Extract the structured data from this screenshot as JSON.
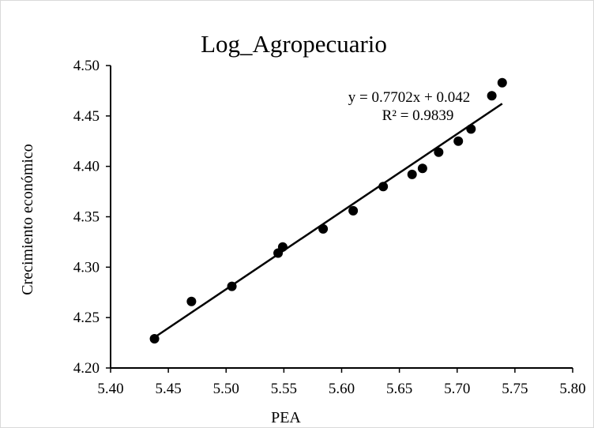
{
  "chart_data": {
    "type": "scatter",
    "title": "Log_Agropecuario",
    "xlabel": "PEA",
    "ylabel": "Crecimiento económico",
    "xlim": [
      5.4,
      5.8
    ],
    "ylim": [
      4.2,
      4.5
    ],
    "x_ticks": [
      "5.40",
      "5.45",
      "5.50",
      "5.55",
      "5.60",
      "5.65",
      "5.70",
      "5.75",
      "5.80"
    ],
    "y_ticks": [
      "4.20",
      "4.25",
      "4.30",
      "4.35",
      "4.40",
      "4.45",
      "4.50"
    ],
    "grid": false,
    "legend": "none",
    "point_color": "#000000",
    "points": [
      {
        "x": 5.438,
        "y": 4.229
      },
      {
        "x": 5.47,
        "y": 4.266
      },
      {
        "x": 5.505,
        "y": 4.281
      },
      {
        "x": 5.545,
        "y": 4.314
      },
      {
        "x": 5.549,
        "y": 4.32
      },
      {
        "x": 5.584,
        "y": 4.338
      },
      {
        "x": 5.61,
        "y": 4.356
      },
      {
        "x": 5.636,
        "y": 4.38
      },
      {
        "x": 5.661,
        "y": 4.392
      },
      {
        "x": 5.67,
        "y": 4.398
      },
      {
        "x": 5.684,
        "y": 4.414
      },
      {
        "x": 5.701,
        "y": 4.425
      },
      {
        "x": 5.712,
        "y": 4.437
      },
      {
        "x": 5.73,
        "y": 4.47
      },
      {
        "x": 5.739,
        "y": 4.483
      }
    ],
    "trendline": {
      "slope": 0.7702,
      "intercept": 0.042,
      "x_range": [
        5.438,
        5.739
      ],
      "equation_label": "y = 0.7702x + 0.042",
      "r2_label": "R² = 0.9839"
    }
  }
}
